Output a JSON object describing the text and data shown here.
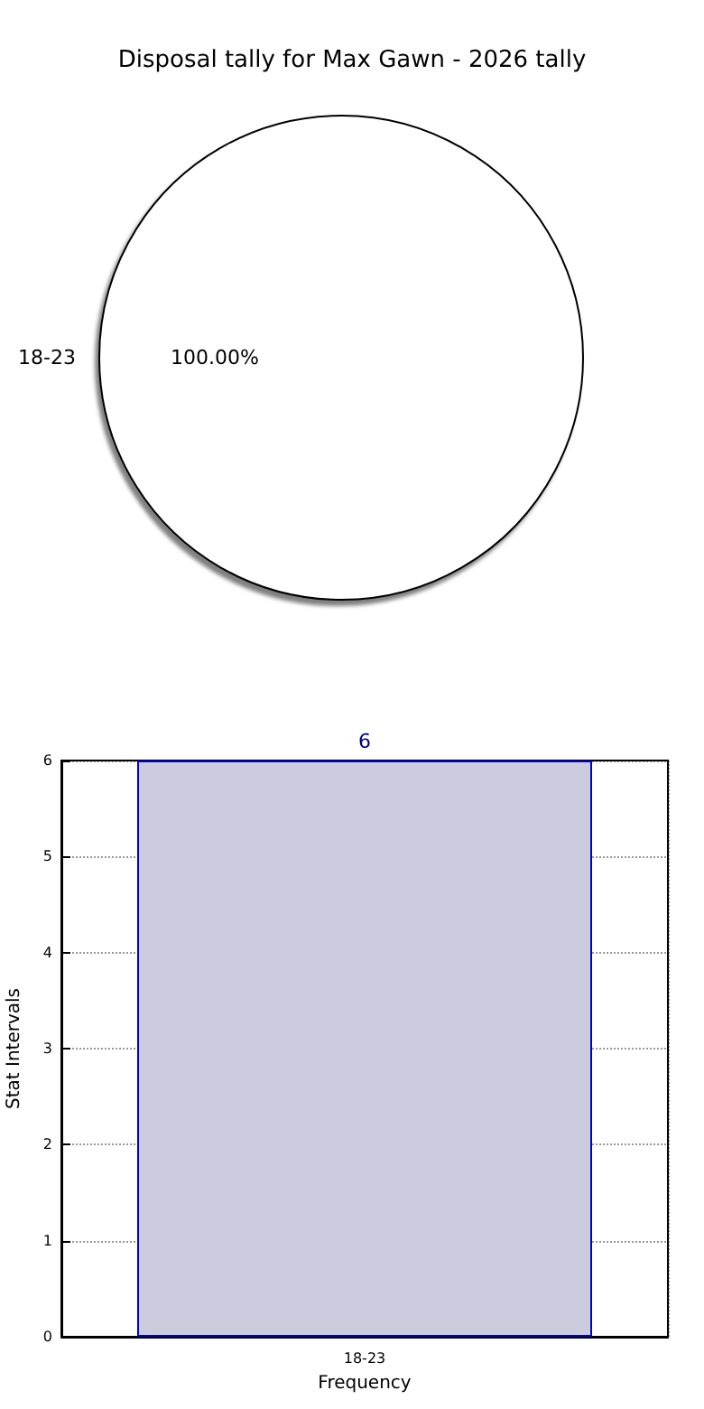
{
  "chart_data": [
    {
      "type": "pie",
      "title": "Disposal tally for Max Gawn - 2026 tally",
      "categories": [
        "18-23"
      ],
      "values": [
        100
      ],
      "colors": [
        "#ffffff"
      ],
      "value_labels": [
        "100.00%"
      ]
    },
    {
      "type": "bar",
      "categories": [
        "18-23"
      ],
      "values": [
        6
      ],
      "color": "#ccccdf",
      "xlabel": "Frequency",
      "ylabel": "Stat Intervals",
      "ylim": [
        0,
        6
      ],
      "yticks": [
        0,
        1,
        2,
        3,
        4,
        5,
        6
      ],
      "grid": true,
      "data_labels": true
    }
  ]
}
